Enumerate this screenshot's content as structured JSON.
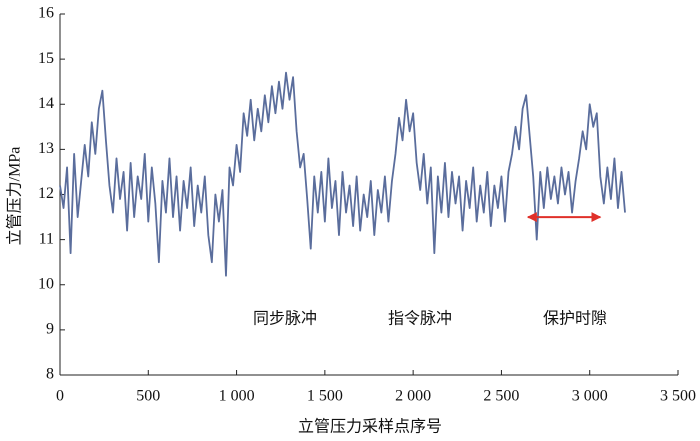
{
  "chart_data": {
    "type": "line",
    "x_label": "立管压力采样点序号",
    "y_label": "立管压力/MPa",
    "x": [
      0,
      20,
      40,
      60,
      80,
      100,
      120,
      140,
      160,
      180,
      200,
      220,
      240,
      260,
      280,
      300,
      320,
      340,
      360,
      380,
      400,
      420,
      440,
      460,
      480,
      500,
      520,
      540,
      560,
      580,
      600,
      620,
      640,
      660,
      680,
      700,
      720,
      740,
      760,
      780,
      800,
      820,
      840,
      860,
      880,
      900,
      920,
      940,
      960,
      980,
      1000,
      1020,
      1040,
      1060,
      1080,
      1100,
      1120,
      1140,
      1160,
      1180,
      1200,
      1220,
      1240,
      1260,
      1280,
      1300,
      1320,
      1340,
      1360,
      1380,
      1400,
      1420,
      1440,
      1460,
      1480,
      1500,
      1520,
      1540,
      1560,
      1580,
      1600,
      1620,
      1640,
      1660,
      1680,
      1700,
      1720,
      1740,
      1760,
      1780,
      1800,
      1820,
      1840,
      1860,
      1880,
      1900,
      1920,
      1940,
      1960,
      1980,
      2000,
      2020,
      2040,
      2060,
      2080,
      2100,
      2120,
      2140,
      2160,
      2180,
      2200,
      2220,
      2240,
      2260,
      2280,
      2300,
      2320,
      2340,
      2360,
      2380,
      2400,
      2420,
      2440,
      2460,
      2480,
      2500,
      2520,
      2540,
      2560,
      2580,
      2600,
      2620,
      2640,
      2660,
      2680,
      2700,
      2720,
      2740,
      2760,
      2780,
      2800,
      2820,
      2840,
      2860,
      2880,
      2900,
      2920,
      2940,
      2960,
      2980,
      3000,
      3020,
      3040,
      3060,
      3080,
      3100,
      3120,
      3140,
      3160,
      3180,
      3200
    ],
    "series": [
      {
        "color": "#5a6d9c",
        "values": [
          12.2,
          11.7,
          12.6,
          10.7,
          12.9,
          11.5,
          12.3,
          13.1,
          12.4,
          13.6,
          12.9,
          13.9,
          14.3,
          13.2,
          12.2,
          11.6,
          12.8,
          11.9,
          12.5,
          11.2,
          12.7,
          11.5,
          12.4,
          11.9,
          12.9,
          11.4,
          12.6,
          11.8,
          10.5,
          12.3,
          11.6,
          12.8,
          11.5,
          12.4,
          11.2,
          12.3,
          11.7,
          12.6,
          11.3,
          12.2,
          11.6,
          12.4,
          11.1,
          10.5,
          12.0,
          11.4,
          12.1,
          10.2,
          12.6,
          12.2,
          13.1,
          12.5,
          13.8,
          13.3,
          14.1,
          13.2,
          13.9,
          13.4,
          14.2,
          13.6,
          14.4,
          13.8,
          14.5,
          13.9,
          14.7,
          14.1,
          14.6,
          13.4,
          12.6,
          12.9,
          11.9,
          10.8,
          12.4,
          11.6,
          12.5,
          11.4,
          12.8,
          11.7,
          12.3,
          11.1,
          12.5,
          11.6,
          12.2,
          11.3,
          12.4,
          11.2,
          12.0,
          11.5,
          12.3,
          11.1,
          12.1,
          11.6,
          12.4,
          11.4,
          12.3,
          12.9,
          13.7,
          13.2,
          14.1,
          13.4,
          13.8,
          12.7,
          12.1,
          12.9,
          11.8,
          12.6,
          10.7,
          12.4,
          11.6,
          12.7,
          11.5,
          12.5,
          11.8,
          12.4,
          11.2,
          12.3,
          11.7,
          12.6,
          11.4,
          12.2,
          11.6,
          12.5,
          11.3,
          12.2,
          11.7,
          12.4,
          11.4,
          12.5,
          12.9,
          13.5,
          13.0,
          13.9,
          14.2,
          13.3,
          12.4,
          11.0,
          12.5,
          11.7,
          12.6,
          11.9,
          12.4,
          11.8,
          12.6,
          12.0,
          12.5,
          11.6,
          12.3,
          12.8,
          13.4,
          13.0,
          14.0,
          13.5,
          13.8,
          12.4,
          11.8,
          12.6,
          11.9,
          12.8,
          11.7,
          12.5,
          11.6
        ]
      }
    ],
    "xlim": [
      0,
      3500
    ],
    "xticks": [
      0,
      500,
      {
        "value": 1000,
        "label": "1 000"
      },
      {
        "value": 1500,
        "label": "1 500"
      },
      {
        "value": 2000,
        "label": "2 000"
      },
      {
        "value": 2500,
        "label": "2 500"
      },
      {
        "value": 3000,
        "label": "3 000"
      },
      {
        "value": 3500,
        "label": "3 500"
      }
    ],
    "ylim": [
      8,
      16
    ],
    "yticks": [
      8,
      9,
      10,
      11,
      12,
      13,
      14,
      15,
      16
    ],
    "annotations": [
      "同步脉冲",
      "指令脉冲",
      "保护时隙"
    ],
    "arrow": {
      "x": [
        2650,
        3060
      ],
      "y": 11.5,
      "color": "#e0302a"
    }
  }
}
